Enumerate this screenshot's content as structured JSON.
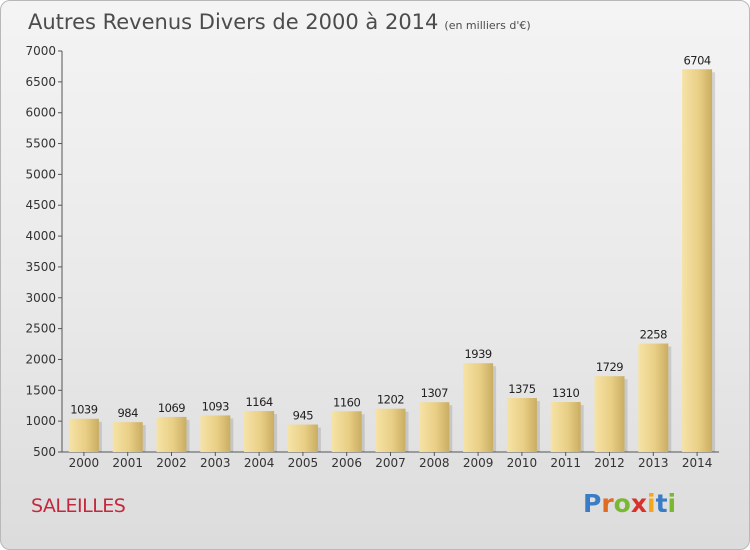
{
  "header": {
    "title": "Autres Revenus Divers de 2000 à 2014",
    "subtitle": "(en milliers d'€)"
  },
  "footer": {
    "town": "SALEILLES"
  },
  "logo": {
    "parts": [
      "P",
      "r",
      "o",
      "x",
      "i",
      "t",
      "i"
    ]
  },
  "colors": {
    "bar_light": "#f4dd9a",
    "bar_dark": "#c9ad62",
    "town": "#c5283d"
  },
  "chart_data": {
    "type": "bar",
    "categories": [
      "2000",
      "2001",
      "2002",
      "2003",
      "2004",
      "2005",
      "2006",
      "2007",
      "2008",
      "2009",
      "2010",
      "2011",
      "2012",
      "2013",
      "2014"
    ],
    "values": [
      1039,
      984,
      1069,
      1093,
      1164,
      945,
      1160,
      1202,
      1307,
      1939,
      1375,
      1310,
      1729,
      2258,
      6704
    ],
    "ylim": [
      500,
      7000
    ],
    "yticks": [
      500,
      1000,
      1500,
      2000,
      2500,
      3000,
      3500,
      4000,
      4500,
      5000,
      5500,
      6000,
      6500,
      7000
    ],
    "grid": false,
    "data_labels": true
  }
}
